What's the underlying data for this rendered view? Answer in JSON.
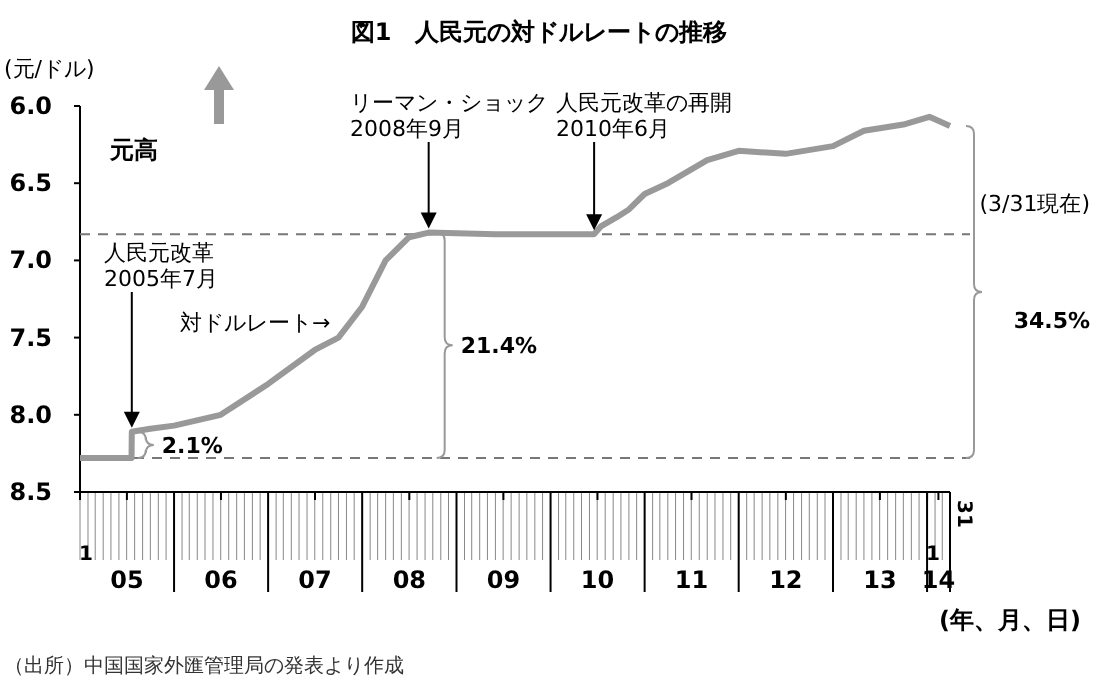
{
  "chart_data": {
    "type": "line",
    "title": "図1　人民元の対ドルレートの推移",
    "ylabel": "(元/ドル)",
    "xlabel": "(年、月、日)",
    "x": [
      "2005-01-01",
      "2005-07-20",
      "2005-07-21",
      "2005-10-01",
      "2006-01-01",
      "2006-07-01",
      "2007-01-01",
      "2007-07-01",
      "2007-10-01",
      "2008-01-01",
      "2008-04-01",
      "2008-07-01",
      "2008-09-15",
      "2009-06-01",
      "2010-06-19",
      "2010-07-15",
      "2010-09-15",
      "2010-11-01",
      "2011-01-01",
      "2011-04-01",
      "2011-09-01",
      "2012-01-01",
      "2012-07-01",
      "2013-01-01",
      "2013-05-01",
      "2013-10-01",
      "2014-01-10",
      "2014-03-31"
    ],
    "series": [
      {
        "color": "#999999",
        "values": [
          8.28,
          8.28,
          8.11,
          8.09,
          8.07,
          8.0,
          7.8,
          7.58,
          7.5,
          7.3,
          7.0,
          6.85,
          6.82,
          6.83,
          6.83,
          6.78,
          6.72,
          6.67,
          6.57,
          6.5,
          6.35,
          6.29,
          6.31,
          6.26,
          6.16,
          6.12,
          6.07,
          6.13
        ]
      }
    ],
    "ylim": [
      8.5,
      6.0
    ],
    "yticks": [
      {
        "value": 6,
        "label": "6.0"
      },
      6.5,
      {
        "value": 7,
        "label": "7.0"
      },
      7.5,
      {
        "value": 8,
        "label": "8.0"
      },
      8.5
    ],
    "xlim": [
      "2005-01-01",
      "2014-03-31"
    ],
    "xticks": [
      {
        "value": "2005-01-01",
        "label": null
      },
      {
        "value": "2005-07-02",
        "label": "05"
      },
      {
        "value": "2006-07-02",
        "label": "06"
      },
      {
        "value": "2007-07-02",
        "label": "07"
      },
      {
        "value": "2008-07-02",
        "label": "08"
      },
      {
        "value": "2009-07-02",
        "label": "09"
      },
      {
        "value": "2010-07-02",
        "label": "10"
      },
      {
        "value": "2011-07-02",
        "label": "11"
      },
      {
        "value": "2012-07-02",
        "label": "12"
      },
      {
        "value": "2013-07-02",
        "label": "13"
      },
      {
        "value": "2014-01-01",
        "label": null
      },
      {
        "value": "2014-02-14",
        "label": "14"
      },
      {
        "value": "2014-03-31",
        "label": null
      }
    ],
    "ref_lines": [
      {
        "axis": "y",
        "value": 8.28,
        "line_style": "dashed",
        "color": "#777777"
      },
      {
        "axis": "y",
        "value": 6.83,
        "line_style": "dashed",
        "color": "#777777"
      }
    ],
    "annotations": [
      "元高",
      "人民元改革\n2005年7月",
      "リーマン・ショック\n2008年9月",
      "人民元改革の再開\n2010年6月",
      "対ドルレート→",
      "2.1%",
      "21.4%",
      "(3/31現在)",
      "34.5%",
      "（出所）中国国家外匯管理局の発表より作成",
      "1",
      "1",
      "31"
    ],
    "grid": false,
    "line_style": "solid"
  }
}
